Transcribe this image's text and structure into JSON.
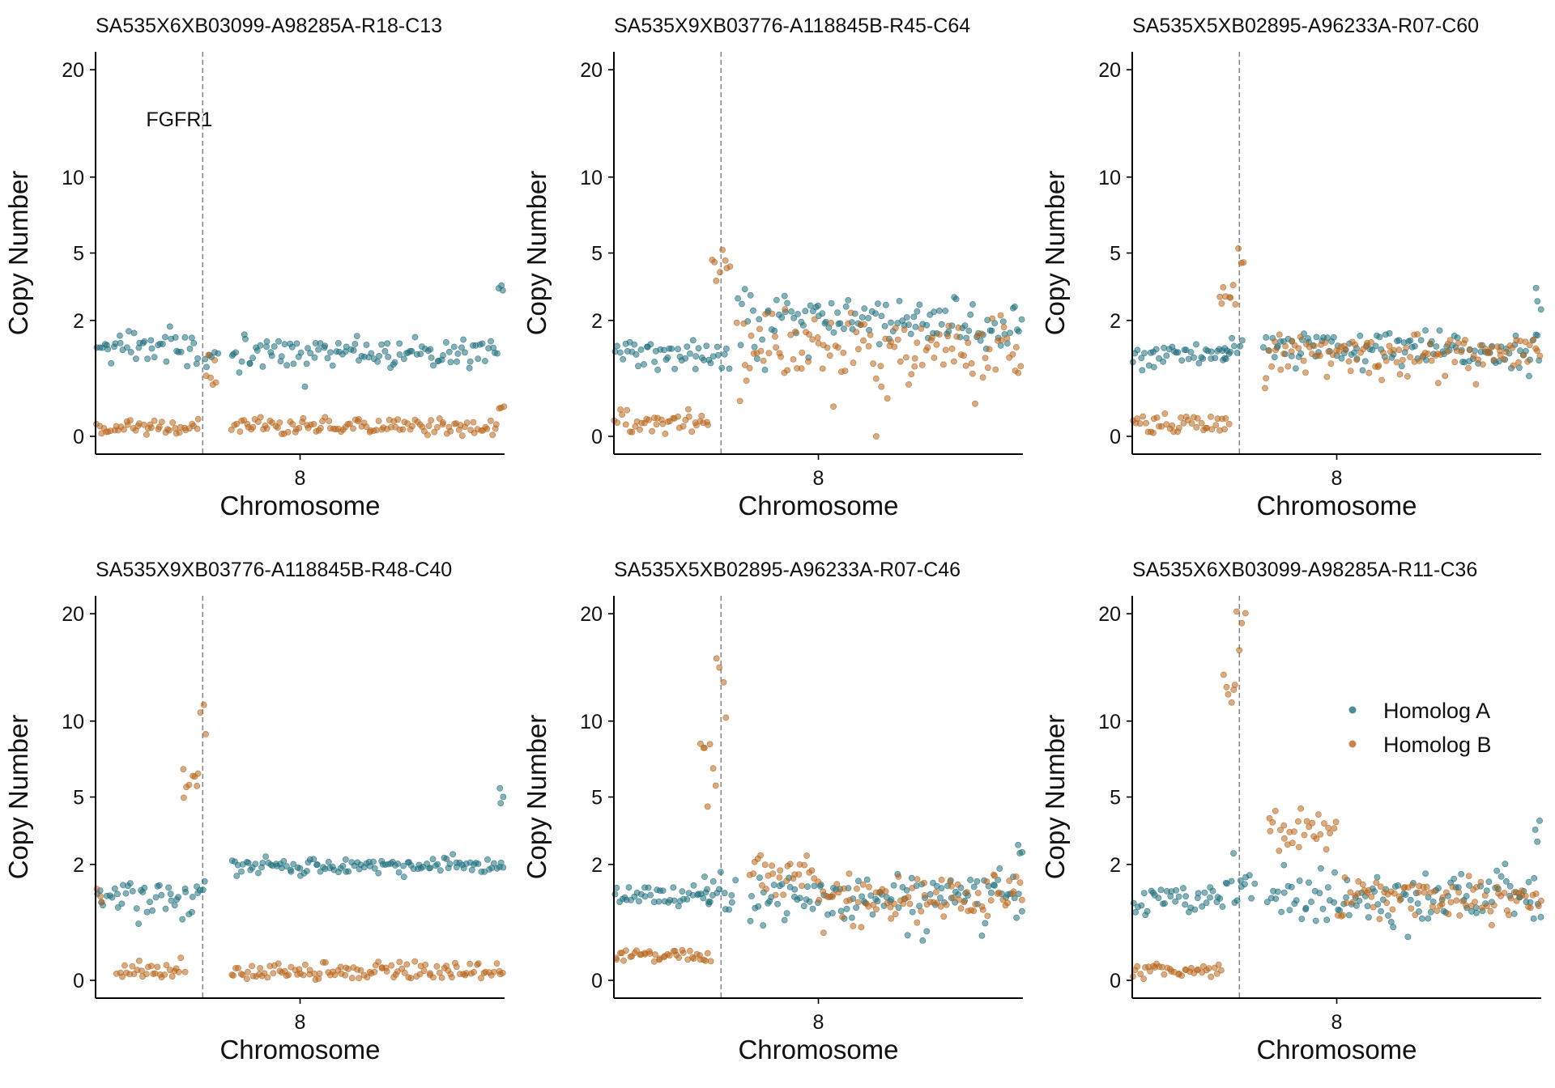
{
  "colors": {
    "homolog_a": "#1f6f7e",
    "homolog_b": "#b8661c",
    "guide": "#8a8a8a"
  },
  "legend": {
    "placement": "inside-right of bottom-right panel",
    "items": [
      {
        "label": "Homolog A",
        "color": "#1f6f7e"
      },
      {
        "label": "Homolog B",
        "color": "#b8661c"
      }
    ]
  },
  "chart_data": [
    {
      "type": "scatter",
      "title": "SA535X6XB03099-A98285A-R18-C13",
      "xlabel": "Chromosome",
      "ylabel": "Copy Number",
      "xticks": [
        "8"
      ],
      "yticks": [
        0,
        2,
        5,
        10,
        20
      ],
      "y_scale": "sqrt",
      "ylim": [
        0,
        22
      ],
      "gene_marker": "FGFR1",
      "annotation": "FGFR1",
      "segments": [
        {
          "series": "Homolog A",
          "start": 0.0,
          "end": 0.255,
          "level": 1.2,
          "spread": 0.22
        },
        {
          "series": "Homolog B",
          "start": 0.0,
          "end": 0.255,
          "level": 0.0,
          "spread": 0.02
        },
        {
          "series": "Homolog A",
          "start": 0.265,
          "end": 0.3,
          "level": 0.8,
          "spread": 0.15
        },
        {
          "series": "Homolog B",
          "start": 0.265,
          "end": 0.3,
          "level": 0.6,
          "spread": 0.15
        },
        {
          "series": "Homolog A",
          "start": 0.33,
          "end": 0.985,
          "level": 1.05,
          "spread": 0.22
        },
        {
          "series": "Homolog B",
          "start": 0.33,
          "end": 0.985,
          "level": 0.0,
          "spread": 0.02
        },
        {
          "series": "Homolog A",
          "start": 0.985,
          "end": 1.0,
          "level": 3.1,
          "spread": 0.15
        },
        {
          "series": "Homolog B",
          "start": 0.985,
          "end": 1.0,
          "level": 0.1,
          "spread": 0.05
        }
      ]
    },
    {
      "type": "scatter",
      "title": "SA535X9XB03776-A118845B-R45-C64",
      "xlabel": "Chromosome",
      "ylabel": "Copy Number",
      "xticks": [
        "8"
      ],
      "yticks": [
        0,
        2,
        5,
        10,
        20
      ],
      "y_scale": "sqrt",
      "ylim": [
        0,
        22
      ],
      "gene_marker": "FGFR1",
      "segments": [
        {
          "series": "Homolog A",
          "start": 0.0,
          "end": 0.235,
          "level": 1.0,
          "spread": 0.2
        },
        {
          "series": "Homolog B",
          "start": 0.0,
          "end": 0.235,
          "level": 0.0,
          "spread": 0.05
        },
        {
          "series": "Homolog A",
          "start": 0.235,
          "end": 0.285,
          "level": 1.1,
          "spread": 0.3
        },
        {
          "series": "Homolog B",
          "start": 0.235,
          "end": 0.285,
          "level": 4.2,
          "spread": 0.6
        },
        {
          "series": "Homolog A",
          "start": 0.3,
          "end": 1.0,
          "level": 1.9,
          "spread": 0.55
        },
        {
          "series": "Homolog B",
          "start": 0.3,
          "end": 1.0,
          "level": 1.2,
          "spread": 0.55
        }
      ]
    },
    {
      "type": "scatter",
      "title": "SA535X5XB02895-A96233A-R07-C60",
      "xlabel": "Chromosome",
      "ylabel": "Copy Number",
      "xticks": [
        "8"
      ],
      "yticks": [
        0,
        2,
        5,
        10,
        20
      ],
      "y_scale": "sqrt",
      "ylim": [
        0,
        22
      ],
      "gene_marker": "FGFR1",
      "segments": [
        {
          "series": "Homolog A",
          "start": 0.0,
          "end": 0.24,
          "level": 1.0,
          "spread": 0.15
        },
        {
          "series": "Homolog B",
          "start": 0.0,
          "end": 0.24,
          "level": 0.0,
          "spread": 0.04
        },
        {
          "series": "Homolog A",
          "start": 0.22,
          "end": 0.27,
          "level": 1.1,
          "spread": 0.3
        },
        {
          "series": "Homolog B",
          "start": 0.21,
          "end": 0.255,
          "level": 3.0,
          "spread": 0.3
        },
        {
          "series": "Homolog B",
          "start": 0.255,
          "end": 0.275,
          "level": 5.2,
          "spread": 0.5
        },
        {
          "series": "Homolog A",
          "start": 0.32,
          "end": 1.0,
          "level": 1.1,
          "spread": 0.25
        },
        {
          "series": "Homolog B",
          "start": 0.32,
          "end": 1.0,
          "level": 1.0,
          "spread": 0.25
        },
        {
          "series": "Homolog A",
          "start": 0.985,
          "end": 1.0,
          "level": 2.6,
          "spread": 0.3
        }
      ]
    },
    {
      "type": "scatter",
      "title": "SA535X9XB03776-A118845B-R48-C40",
      "xlabel": "Chromosome",
      "ylabel": "Copy Number",
      "xticks": [
        "8"
      ],
      "yticks": [
        0,
        2,
        5,
        10,
        20
      ],
      "y_scale": "sqrt",
      "ylim": [
        0,
        22
      ],
      "gene_marker": "FGFR1",
      "segments": [
        {
          "series": "Homolog A",
          "start": 0.0,
          "end": 0.22,
          "level": 1.0,
          "spread": 0.2
        },
        {
          "series": "Homolog B",
          "start": 0.0,
          "end": 0.02,
          "level": 1.1,
          "spread": 0.3
        },
        {
          "series": "Homolog B",
          "start": 0.05,
          "end": 0.22,
          "level": 0.0,
          "spread": 0.02
        },
        {
          "series": "Homolog A",
          "start": 0.22,
          "end": 0.27,
          "level": 1.3,
          "spread": 0.3
        },
        {
          "series": "Homolog B",
          "start": 0.21,
          "end": 0.255,
          "level": 5.6,
          "spread": 0.6
        },
        {
          "series": "Homolog B",
          "start": 0.255,
          "end": 0.275,
          "level": 10.5,
          "spread": 0.8
        },
        {
          "series": "Homolog A",
          "start": 0.33,
          "end": 1.0,
          "level": 1.95,
          "spread": 0.15
        },
        {
          "series": "Homolog B",
          "start": 0.33,
          "end": 1.0,
          "level": 0.0,
          "spread": 0.02
        },
        {
          "series": "Homolog A",
          "start": 0.985,
          "end": 1.0,
          "level": 4.6,
          "spread": 0.3
        }
      ]
    },
    {
      "type": "scatter",
      "title": "SA535X5XB02895-A96233A-R07-C46",
      "xlabel": "Chromosome",
      "ylabel": "Copy Number",
      "xticks": [
        "8"
      ],
      "yticks": [
        0,
        2,
        5,
        10,
        20
      ],
      "y_scale": "sqrt",
      "ylim": [
        0,
        22
      ],
      "gene_marker": "FGFR1",
      "segments": [
        {
          "series": "Homolog A",
          "start": 0.0,
          "end": 0.24,
          "level": 1.0,
          "spread": 0.15
        },
        {
          "series": "Homolog B",
          "start": 0.0,
          "end": 0.24,
          "level": 0.05,
          "spread": 0.05
        },
        {
          "series": "Homolog A",
          "start": 0.22,
          "end": 0.3,
          "level": 1.2,
          "spread": 0.4
        },
        {
          "series": "Homolog B",
          "start": 0.21,
          "end": 0.25,
          "level": 7.5,
          "spread": 1.0
        },
        {
          "series": "Homolog B",
          "start": 0.25,
          "end": 0.275,
          "level": 14.0,
          "spread": 2.5
        },
        {
          "series": "Homolog A",
          "start": 0.33,
          "end": 1.0,
          "level": 1.0,
          "spread": 0.3
        },
        {
          "series": "Homolog B",
          "start": 0.33,
          "end": 0.5,
          "level": 1.8,
          "spread": 0.4
        },
        {
          "series": "Homolog B",
          "start": 0.5,
          "end": 1.0,
          "level": 1.0,
          "spread": 0.3
        },
        {
          "series": "Homolog A",
          "start": 0.985,
          "end": 1.0,
          "level": 2.6,
          "spread": 0.3
        }
      ]
    },
    {
      "type": "scatter",
      "title": "SA535X6XB03099-A98285A-R11-C36",
      "xlabel": "Chromosome",
      "ylabel": "Copy Number",
      "xticks": [
        "8"
      ],
      "yticks": [
        0,
        2,
        5,
        10,
        20
      ],
      "y_scale": "sqrt",
      "ylim": [
        0,
        22
      ],
      "gene_marker": "FGFR1",
      "segments": [
        {
          "series": "Homolog A",
          "start": 0.0,
          "end": 0.22,
          "level": 1.05,
          "spread": 0.22
        },
        {
          "series": "Homolog B",
          "start": 0.0,
          "end": 0.22,
          "level": 0.0,
          "spread": 0.02
        },
        {
          "series": "Homolog A",
          "start": 0.22,
          "end": 0.3,
          "level": 1.2,
          "spread": 0.5
        },
        {
          "series": "Homolog B",
          "start": 0.22,
          "end": 0.255,
          "level": 12.5,
          "spread": 1.2
        },
        {
          "series": "Homolog B",
          "start": 0.255,
          "end": 0.28,
          "level": 18.0,
          "spread": 3.5
        },
        {
          "series": "Homolog A",
          "start": 0.33,
          "end": 1.0,
          "level": 1.1,
          "spread": 0.35
        },
        {
          "series": "Homolog B",
          "start": 0.33,
          "end": 0.5,
          "level": 3.2,
          "spread": 0.5
        },
        {
          "series": "Homolog B",
          "start": 0.5,
          "end": 1.0,
          "level": 1.1,
          "spread": 0.3
        },
        {
          "series": "Homolog A",
          "start": 0.985,
          "end": 1.0,
          "level": 3.5,
          "spread": 0.5
        }
      ]
    }
  ]
}
